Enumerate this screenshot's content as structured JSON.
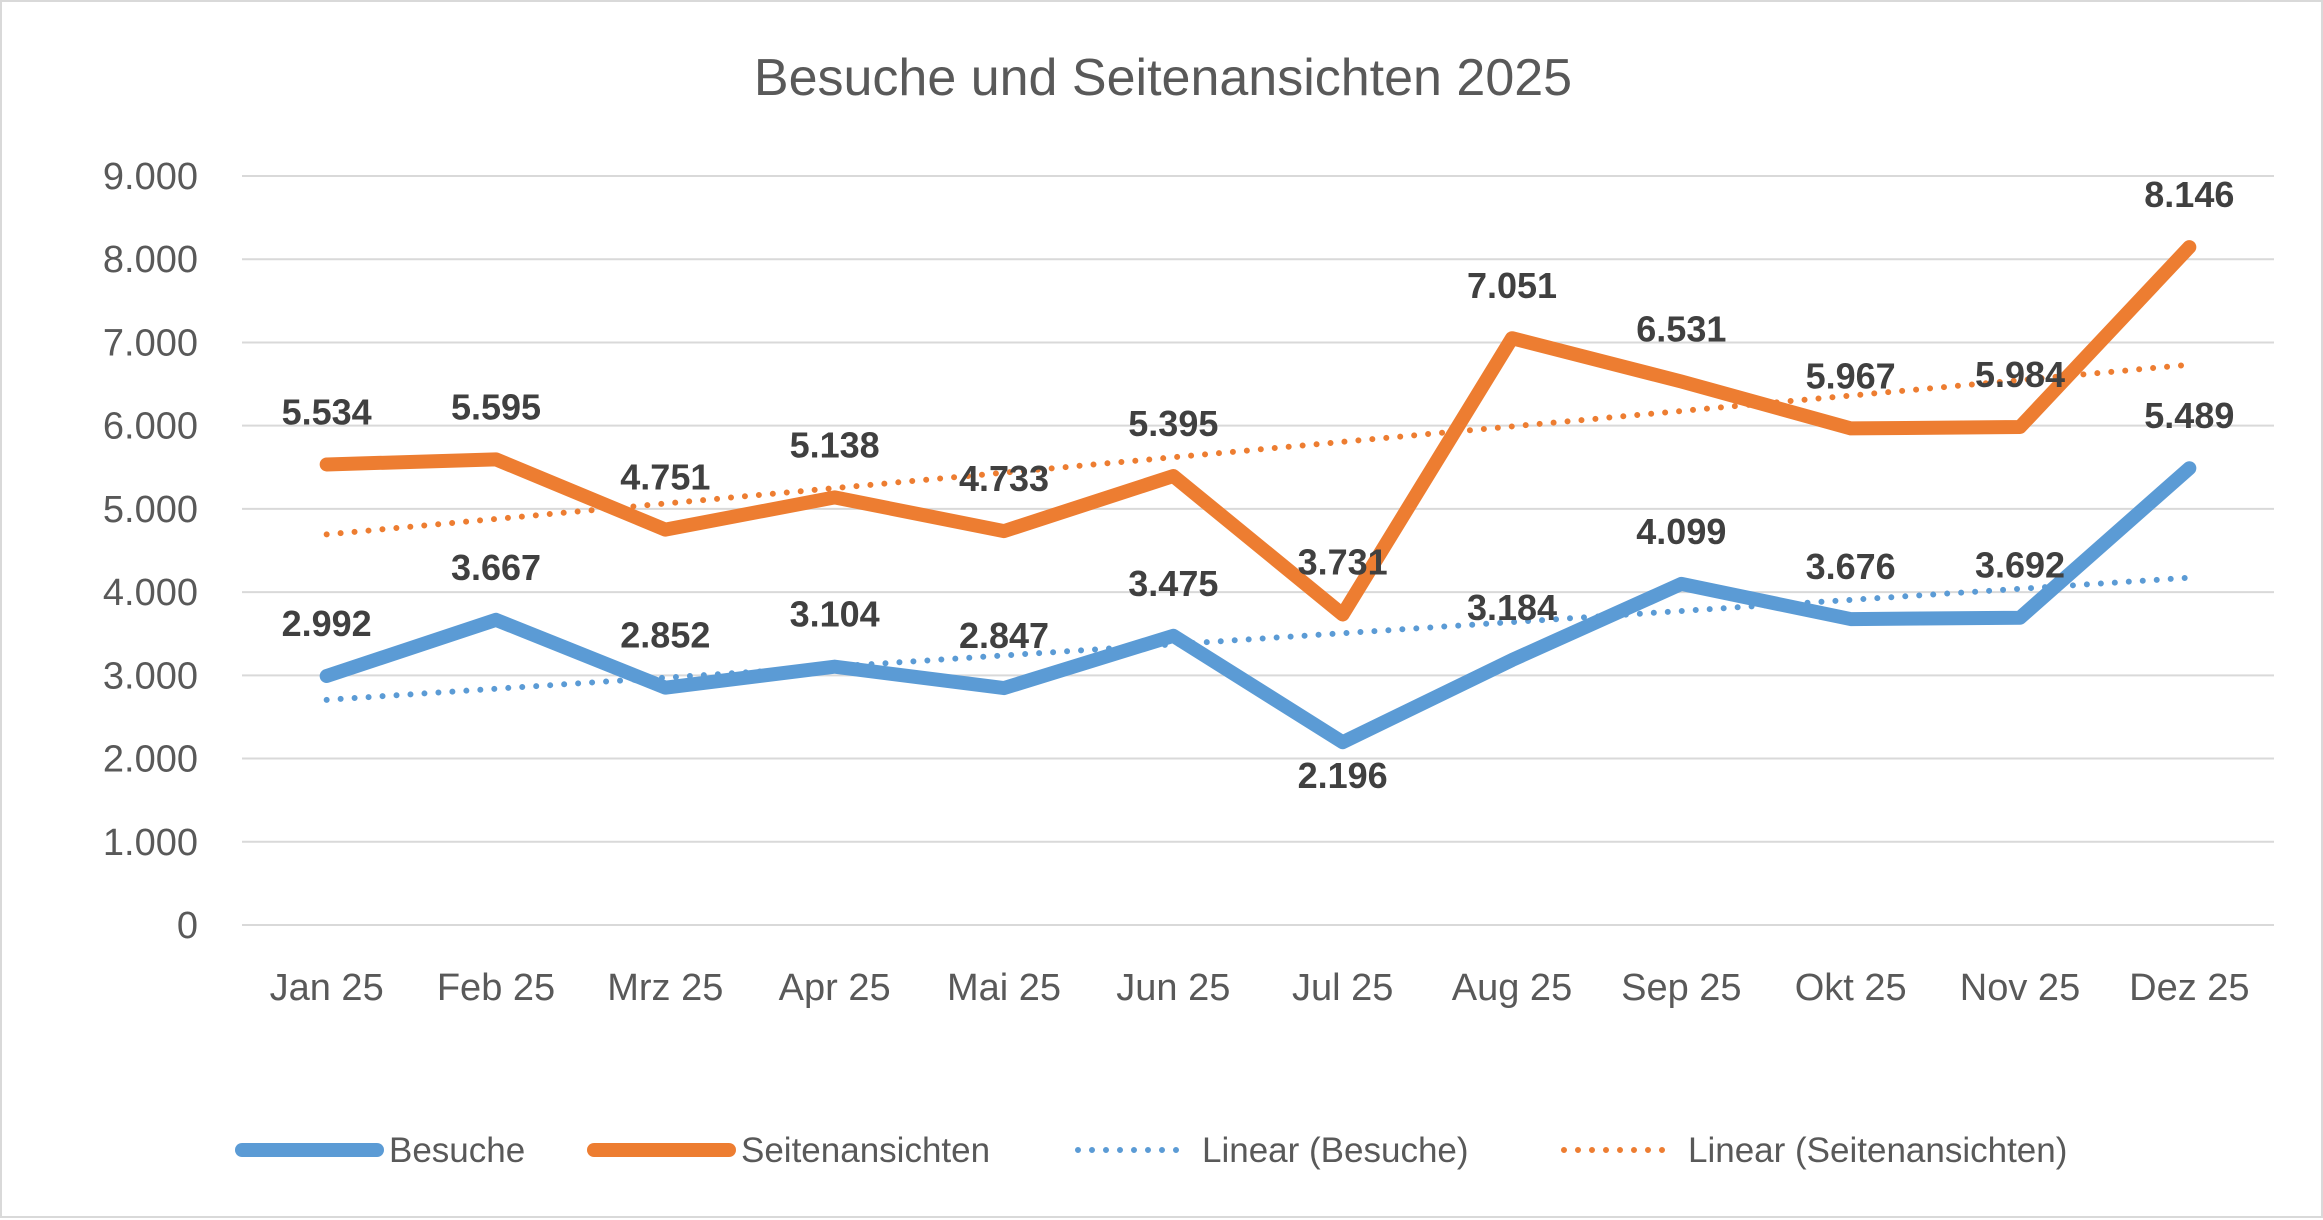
{
  "chart_data": {
    "type": "line",
    "title": "Besuche und Seitenansichten 2025",
    "xlabel": "",
    "ylabel": "",
    "ylim": [
      0,
      9000
    ],
    "yticks": [
      0,
      1000,
      2000,
      3000,
      4000,
      5000,
      6000,
      7000,
      8000,
      9000
    ],
    "ytick_labels": [
      "0",
      "1.000",
      "2.000",
      "3.000",
      "4.000",
      "5.000",
      "6.000",
      "7.000",
      "8.000",
      "9.000"
    ],
    "grid": true,
    "legend_position": "bottom",
    "categories": [
      "Jan 25",
      "Feb 25",
      "Mrz 25",
      "Apr 25",
      "Mai 25",
      "Jun 25",
      "Jul 25",
      "Aug 25",
      "Sep 25",
      "Okt 25",
      "Nov 25",
      "Dez 25"
    ],
    "series": [
      {
        "name": "Besuche",
        "color": "#5b9bd5",
        "values": [
          2992,
          3667,
          2852,
          3104,
          2847,
          3475,
          2196,
          3184,
          4099,
          3676,
          3692,
          5489
        ],
        "labels": [
          "2.992",
          "3.667",
          "2.852",
          "3.104",
          "2.847",
          "3.475",
          "2.196",
          "3.184",
          "4.099",
          "3.676",
          "3.692",
          "5.489"
        ]
      },
      {
        "name": "Seitenansichten",
        "color": "#ed7d31",
        "values": [
          5534,
          5595,
          4751,
          5138,
          4733,
          5395,
          3731,
          7051,
          6531,
          5967,
          5984,
          8146
        ],
        "labels": [
          "5.534",
          "5.595",
          "4.751",
          "5.138",
          "4.733",
          "5.395",
          "3.731",
          "7.051",
          "6.531",
          "5.967",
          "5.984",
          "8.146"
        ]
      }
    ],
    "trendlines": [
      {
        "name": "Linear (Besuche)",
        "of": "Besuche",
        "color": "#5b9bd5",
        "style": "dotted"
      },
      {
        "name": "Linear (Seitenansichten)",
        "of": "Seitenansichten",
        "color": "#ed7d31",
        "style": "dotted"
      }
    ]
  }
}
